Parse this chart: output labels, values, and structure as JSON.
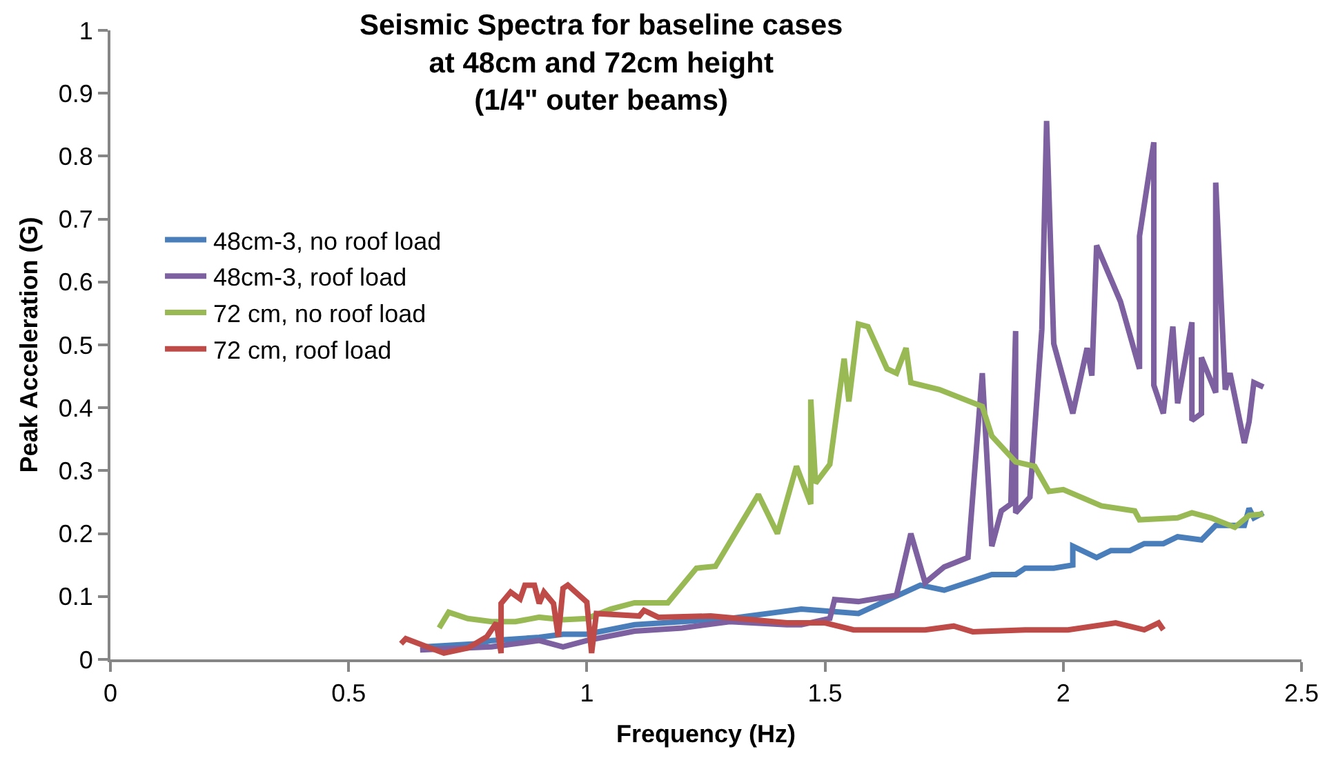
{
  "chart_data": {
    "type": "line",
    "title": "Seismic Spectra for baseline cases\nat 48cm and 72cm height\n(1/4\" outer beams)",
    "xlabel": "Frequency (Hz)",
    "ylabel": "Peak Acceleration (G)",
    "xlim": [
      0,
      2.5
    ],
    "xticks": [
      0,
      0.5,
      1,
      1.5,
      2,
      2.5
    ],
    "ylim": [
      0,
      1
    ],
    "yticks": [
      0,
      0.1,
      0.2,
      0.3,
      0.4,
      0.5,
      0.6,
      0.7,
      0.8,
      0.9,
      1
    ],
    "grid": false,
    "legend": "left",
    "marker": "none",
    "line_style": "solid",
    "series": [
      {
        "name": "48cm-3, no roof load",
        "color": "#4a7ebb",
        "x": [
          0.66,
          0.77,
          0.8,
          0.9,
          0.95,
          1.0,
          1.1,
          1.2,
          1.3,
          1.4,
          1.45,
          1.57,
          1.7,
          1.75,
          1.85,
          1.9,
          1.92,
          1.98,
          2.02,
          2.02,
          2.07,
          2.1,
          2.14,
          2.17,
          2.21,
          2.24,
          2.29,
          2.32,
          2.38,
          2.39,
          2.4,
          2.42
        ],
        "values": [
          0.02,
          0.025,
          0.03,
          0.035,
          0.04,
          0.04,
          0.055,
          0.06,
          0.065,
          0.075,
          0.08,
          0.073,
          0.118,
          0.11,
          0.135,
          0.135,
          0.145,
          0.145,
          0.15,
          0.18,
          0.162,
          0.173,
          0.173,
          0.184,
          0.184,
          0.195,
          0.19,
          0.213,
          0.213,
          0.24,
          0.225,
          0.233
        ]
      },
      {
        "name": "48cm-3, roof load",
        "color": "#7d60a0",
        "x": [
          0.65,
          0.8,
          0.9,
          0.95,
          1.0,
          1.1,
          1.2,
          1.3,
          1.42,
          1.45,
          1.51,
          1.52,
          1.57,
          1.65,
          1.68,
          1.71,
          1.75,
          1.8,
          1.83,
          1.85,
          1.87,
          1.89,
          1.9,
          1.9,
          1.93,
          1.955,
          1.965,
          1.98,
          2.02,
          2.05,
          2.06,
          2.07,
          2.12,
          2.16,
          2.16,
          2.19,
          2.19,
          2.21,
          2.23,
          2.24,
          2.27,
          2.27,
          2.29,
          2.29,
          2.32,
          2.32,
          2.34,
          2.35,
          2.38,
          2.39,
          2.4,
          2.42
        ],
        "values": [
          0.015,
          0.02,
          0.03,
          0.02,
          0.03,
          0.045,
          0.05,
          0.06,
          0.055,
          0.055,
          0.065,
          0.095,
          0.092,
          0.102,
          0.2,
          0.122,
          0.147,
          0.162,
          0.455,
          0.18,
          0.236,
          0.247,
          0.522,
          0.233,
          0.258,
          0.525,
          0.856,
          0.502,
          0.391,
          0.495,
          0.451,
          0.658,
          0.569,
          0.462,
          0.673,
          0.822,
          0.436,
          0.391,
          0.529,
          0.407,
          0.536,
          0.38,
          0.391,
          0.48,
          0.424,
          0.758,
          0.429,
          0.455,
          0.344,
          0.378,
          0.44,
          0.433
        ]
      },
      {
        "name": "72 cm, no roof load",
        "color": "#98b954",
        "x": [
          0.69,
          0.71,
          0.75,
          0.8,
          0.85,
          0.9,
          0.95,
          1.0,
          1.05,
          1.1,
          1.17,
          1.23,
          1.27,
          1.36,
          1.4,
          1.44,
          1.47,
          1.47,
          1.48,
          1.51,
          1.54,
          1.55,
          1.57,
          1.59,
          1.63,
          1.65,
          1.67,
          1.68,
          1.74,
          1.83,
          1.85,
          1.9,
          1.94,
          1.97,
          2.0,
          2.08,
          2.15,
          2.16,
          2.24,
          2.27,
          2.31,
          2.36,
          2.39,
          2.42
        ],
        "values": [
          0.05,
          0.075,
          0.065,
          0.06,
          0.06,
          0.067,
          0.063,
          0.065,
          0.08,
          0.09,
          0.09,
          0.145,
          0.148,
          0.262,
          0.2,
          0.307,
          0.247,
          0.413,
          0.28,
          0.31,
          0.478,
          0.41,
          0.533,
          0.529,
          0.462,
          0.455,
          0.495,
          0.44,
          0.429,
          0.402,
          0.355,
          0.314,
          0.307,
          0.267,
          0.27,
          0.244,
          0.236,
          0.222,
          0.225,
          0.233,
          0.225,
          0.21,
          0.229,
          0.231
        ]
      },
      {
        "name": "72 cm, roof load",
        "color": "#be4b48",
        "x": [
          0.61,
          0.62,
          0.7,
          0.75,
          0.79,
          0.81,
          0.82,
          0.82,
          0.84,
          0.86,
          0.87,
          0.89,
          0.9,
          0.91,
          0.93,
          0.94,
          0.95,
          0.96,
          1.0,
          1.01,
          1.02,
          1.11,
          1.12,
          1.15,
          1.26,
          1.42,
          1.5,
          1.56,
          1.71,
          1.77,
          1.81,
          1.92,
          2.01,
          2.11,
          2.17,
          2.2,
          2.21
        ],
        "values": [
          0.025,
          0.033,
          0.01,
          0.018,
          0.036,
          0.058,
          0.01,
          0.089,
          0.107,
          0.096,
          0.118,
          0.118,
          0.089,
          0.107,
          0.089,
          0.036,
          0.113,
          0.118,
          0.091,
          0.01,
          0.073,
          0.069,
          0.078,
          0.067,
          0.069,
          0.058,
          0.058,
          0.047,
          0.047,
          0.053,
          0.044,
          0.047,
          0.047,
          0.058,
          0.047,
          0.058,
          0.047
        ]
      }
    ]
  }
}
